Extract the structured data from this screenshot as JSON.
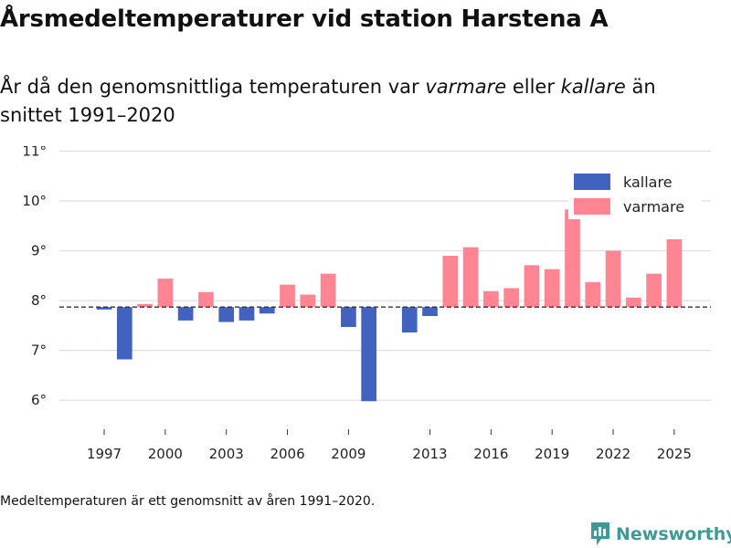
{
  "title": "Årsmedeltemperaturer vid station Harstena A",
  "subtitle": {
    "part1": "År då den genomsnittliga temperaturen var ",
    "warm": "varmare",
    "part2": " eller ",
    "cold": "kallare",
    "part3": " än snittet 1991–2020"
  },
  "footnote": "Medeltemperaturen är ett genomsnitt av åren 1991–2020.",
  "brand": {
    "name": "Newsworthy",
    "color": "#3d9a96"
  },
  "colors": {
    "kallare": "#4262c0",
    "varmare": "#ff8593",
    "baseline": "#333333",
    "grid": "#dddddd"
  },
  "chart_data": {
    "type": "bar",
    "baseline": 7.87,
    "ylim": [
      5.6,
      11.1
    ],
    "yticks": [
      6,
      7,
      8,
      9,
      10,
      11
    ],
    "ytick_labels": [
      "6°",
      "7°",
      "8°",
      "9°",
      "10°",
      "11°"
    ],
    "xlim": [
      1994.8,
      2026.8
    ],
    "xticks": [
      1997,
      2000,
      2003,
      2006,
      2009,
      2013,
      2016,
      2019,
      2022,
      2025
    ],
    "xtick_labels": [
      "1997",
      "2000",
      "2003",
      "2006",
      "2009",
      "2013",
      "2016",
      "2019",
      "2022",
      "2025"
    ],
    "legend": [
      {
        "key": "kallare",
        "label": "kallare"
      },
      {
        "key": "varmare",
        "label": "varmare"
      }
    ],
    "legend_position": "top-right",
    "years": [
      1997,
      1998,
      1999,
      2000,
      2001,
      2002,
      2003,
      2004,
      2005,
      2006,
      2007,
      2008,
      2009,
      2010,
      2012,
      2013,
      2014,
      2015,
      2016,
      2017,
      2018,
      2019,
      2020,
      2021,
      2022,
      2023,
      2024,
      2025
    ],
    "values": [
      7.82,
      6.82,
      7.93,
      8.44,
      7.6,
      8.17,
      7.57,
      7.6,
      7.74,
      8.32,
      8.12,
      8.54,
      7.47,
      5.98,
      7.36,
      7.69,
      8.9,
      9.07,
      8.19,
      8.25,
      8.71,
      8.63,
      9.83,
      8.37,
      9.0,
      8.06,
      8.54,
      9.23
    ]
  }
}
